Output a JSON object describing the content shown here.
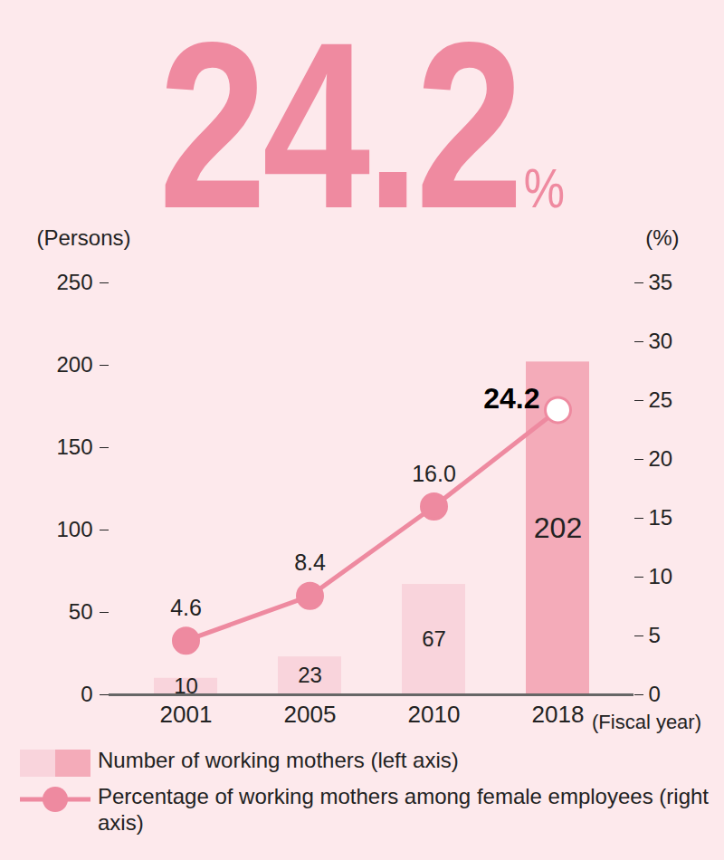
{
  "chart_data": {
    "type": "bar",
    "title": "24.2%",
    "x_label": "(Fiscal year)",
    "y_label": "(Persons)",
    "y2_label": "(%)",
    "categories": [
      "2001",
      "2005",
      "2010",
      "2018"
    ],
    "ylim": [
      0,
      250
    ],
    "yticks": [
      0,
      50,
      100,
      150,
      200,
      250
    ],
    "y2lim": [
      0,
      35
    ],
    "y2ticks": [
      0,
      5,
      10,
      15,
      20,
      25,
      30,
      35
    ],
    "grid": false,
    "legend": "bottom",
    "data_labels": true,
    "series": [
      {
        "name": "Number of working mothers (left axis)",
        "type": "bar",
        "colors": [
          "#f9d4dc",
          "#f9d4dc",
          "#f9d4dc",
          "#f4abb9"
        ],
        "values": [
          10,
          23,
          67,
          202
        ]
      },
      {
        "name": "Percentage of working mothers among female employees (right axis)",
        "type": "line",
        "axis": "y2",
        "color": "#ee8aa0",
        "marker": "circle",
        "line_style": "solid",
        "values": [
          4.6,
          8.4,
          16.0,
          24.2
        ],
        "value_labels": [
          "4.6",
          "8.4",
          "16.0",
          "24.2"
        ]
      }
    ]
  }
}
